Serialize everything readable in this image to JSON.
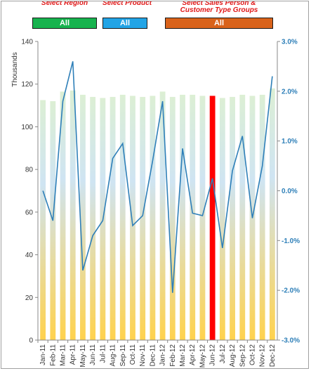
{
  "filters": {
    "region": {
      "label": "Select Region",
      "value": "All",
      "color": "#17b34e"
    },
    "product": {
      "label": "Select Product",
      "value": "All",
      "color": "#22a4e6"
    },
    "salesperson": {
      "label": "Select Sales Person & Customer Type Groups",
      "value": "All",
      "color": "#d9621a"
    }
  },
  "chart_data": {
    "type": "bar",
    "categories": [
      "Jan-11",
      "Feb-11",
      "Mar-11",
      "Apr-11",
      "May-11",
      "Jun-11",
      "Jul-11",
      "Aug-11",
      "Sep-11",
      "Oct-11",
      "Nov-11",
      "Dec-11",
      "Jan-12",
      "Feb-12",
      "Mar-12",
      "Apr-12",
      "May-12",
      "Jun-12",
      "Jul-12",
      "Aug-12",
      "Sep-12",
      "Oct-12",
      "Nov-12",
      "Dec-12"
    ],
    "series": [
      {
        "axis": "left",
        "kind": "bar",
        "values": [
          112.5,
          112,
          116.5,
          117,
          115,
          114,
          113.5,
          114,
          115,
          114.5,
          114,
          114.5,
          116.5,
          114,
          115,
          115,
          114.5,
          114.5,
          113.5,
          114,
          115,
          114.5,
          115,
          118
        ],
        "highlight_index": 17,
        "highlight_color": "#ff0000",
        "gradient_top": "#dcefd4",
        "gradient_mid": "#cfe4f2",
        "gradient_bottom": "#ffd24d"
      },
      {
        "axis": "right",
        "kind": "line",
        "color": "#2e7fb8",
        "values": [
          0.0,
          -0.6,
          1.8,
          2.6,
          -1.6,
          -0.9,
          -0.6,
          0.65,
          0.95,
          -0.7,
          -0.5,
          0.6,
          1.8,
          -2.05,
          0.85,
          -0.45,
          -0.5,
          0.25,
          -1.15,
          0.4,
          1.1,
          -0.55,
          0.5,
          2.3
        ]
      }
    ],
    "ylabel": "Thousands",
    "ylim": [
      0,
      140
    ],
    "yticks": [
      "0",
      "20",
      "40",
      "60",
      "80",
      "100",
      "120",
      "140"
    ],
    "y2lim": [
      -3.0,
      3.0
    ],
    "y2ticks": [
      "-3.0%",
      "-2.0%",
      "-1.0%",
      "0.0%",
      "1.0%",
      "2.0%",
      "3.0%"
    ],
    "y2_color": "#2e7fb8",
    "grid": false
  }
}
